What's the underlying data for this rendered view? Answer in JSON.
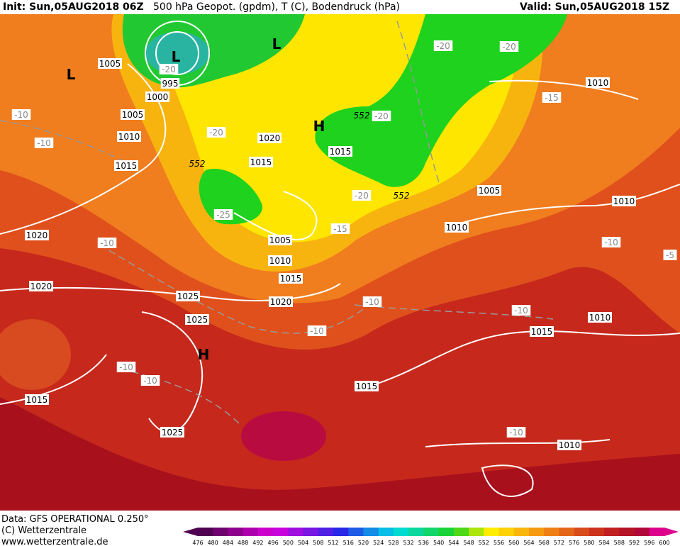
{
  "header": {
    "init": "Init: Sun,05AUG2018 06Z",
    "title": "500 hPa Geopot. (gpdm), T (C), Bodendruck (hPa)",
    "valid": "Valid: Sun,05AUG2018 15Z"
  },
  "footer": {
    "data": "Data: GFS OPERATIONAL 0.250°",
    "copyright": "(C) Wetterzentrale",
    "url": "www.wetterzentrale.de"
  },
  "colorbar": {
    "labels": [
      476,
      480,
      484,
      488,
      492,
      496,
      500,
      504,
      508,
      512,
      516,
      520,
      524,
      528,
      532,
      536,
      540,
      544,
      548,
      552,
      556,
      560,
      564,
      568,
      572,
      576,
      580,
      584,
      588,
      592,
      596,
      600
    ]
  },
  "map": {
    "pressure_labels": [
      "1005",
      "995",
      "1000",
      "1005",
      "1010",
      "1015",
      "1020",
      "1015",
      "1015",
      "1020",
      "1020",
      "1025",
      "1025",
      "1005",
      "1010",
      "1015",
      "1020",
      "1010",
      "1005",
      "1010",
      "1010",
      "1010",
      "1015",
      "1015",
      "1015",
      "1025",
      "1010"
    ],
    "temperature_labels": [
      "-20",
      "-10",
      "-10",
      "-20",
      "-25",
      "-20",
      "-20",
      "-15",
      "-20",
      "-20",
      "-15",
      "-10",
      "-10",
      "-10",
      "-10",
      "-10",
      "-10",
      "-10",
      "-10",
      "-5"
    ],
    "geopotential_labels": [
      "552",
      "552",
      "552"
    ],
    "systems": [
      "L",
      "L",
      "L",
      "H",
      "H"
    ]
  }
}
